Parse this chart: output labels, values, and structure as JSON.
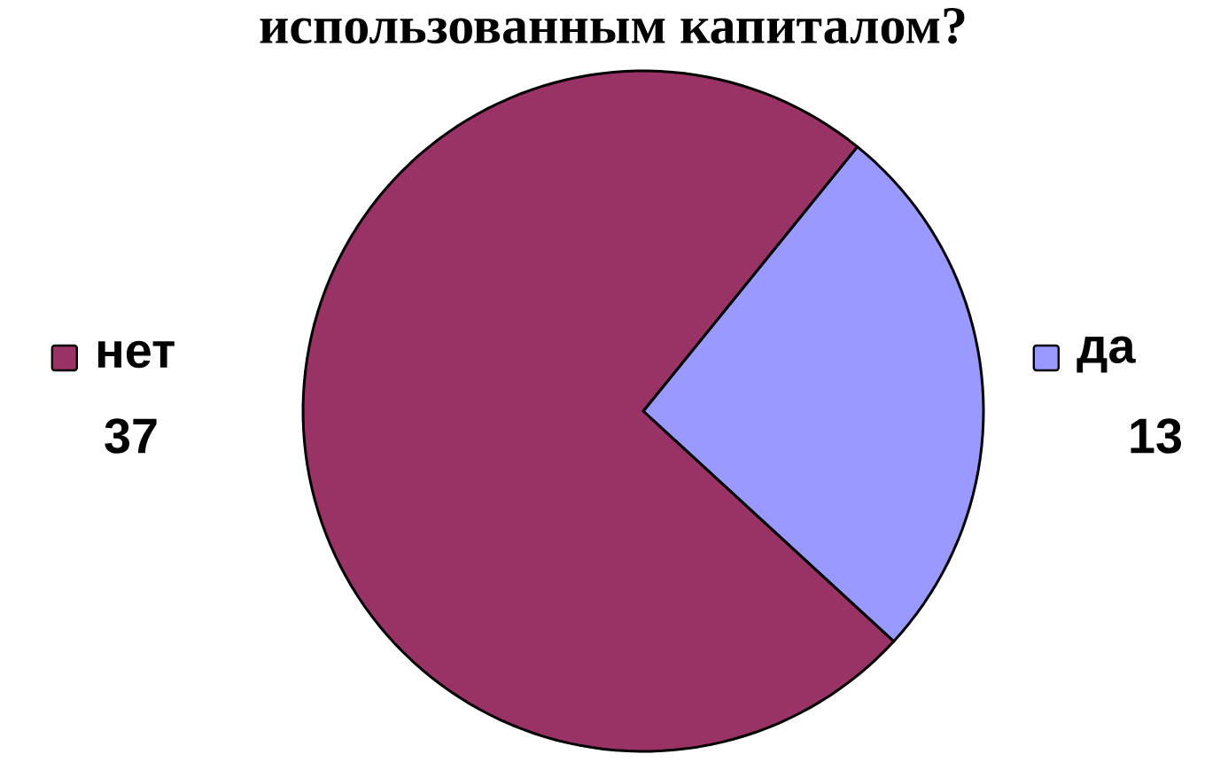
{
  "chart_data": {
    "type": "pie",
    "title": "использованным капиталом?",
    "categories": [
      "да",
      "нет"
    ],
    "values": [
      13,
      37
    ],
    "colors": [
      "#9999ff",
      "#993366"
    ],
    "data_labels": true,
    "legend": "top left"
  }
}
